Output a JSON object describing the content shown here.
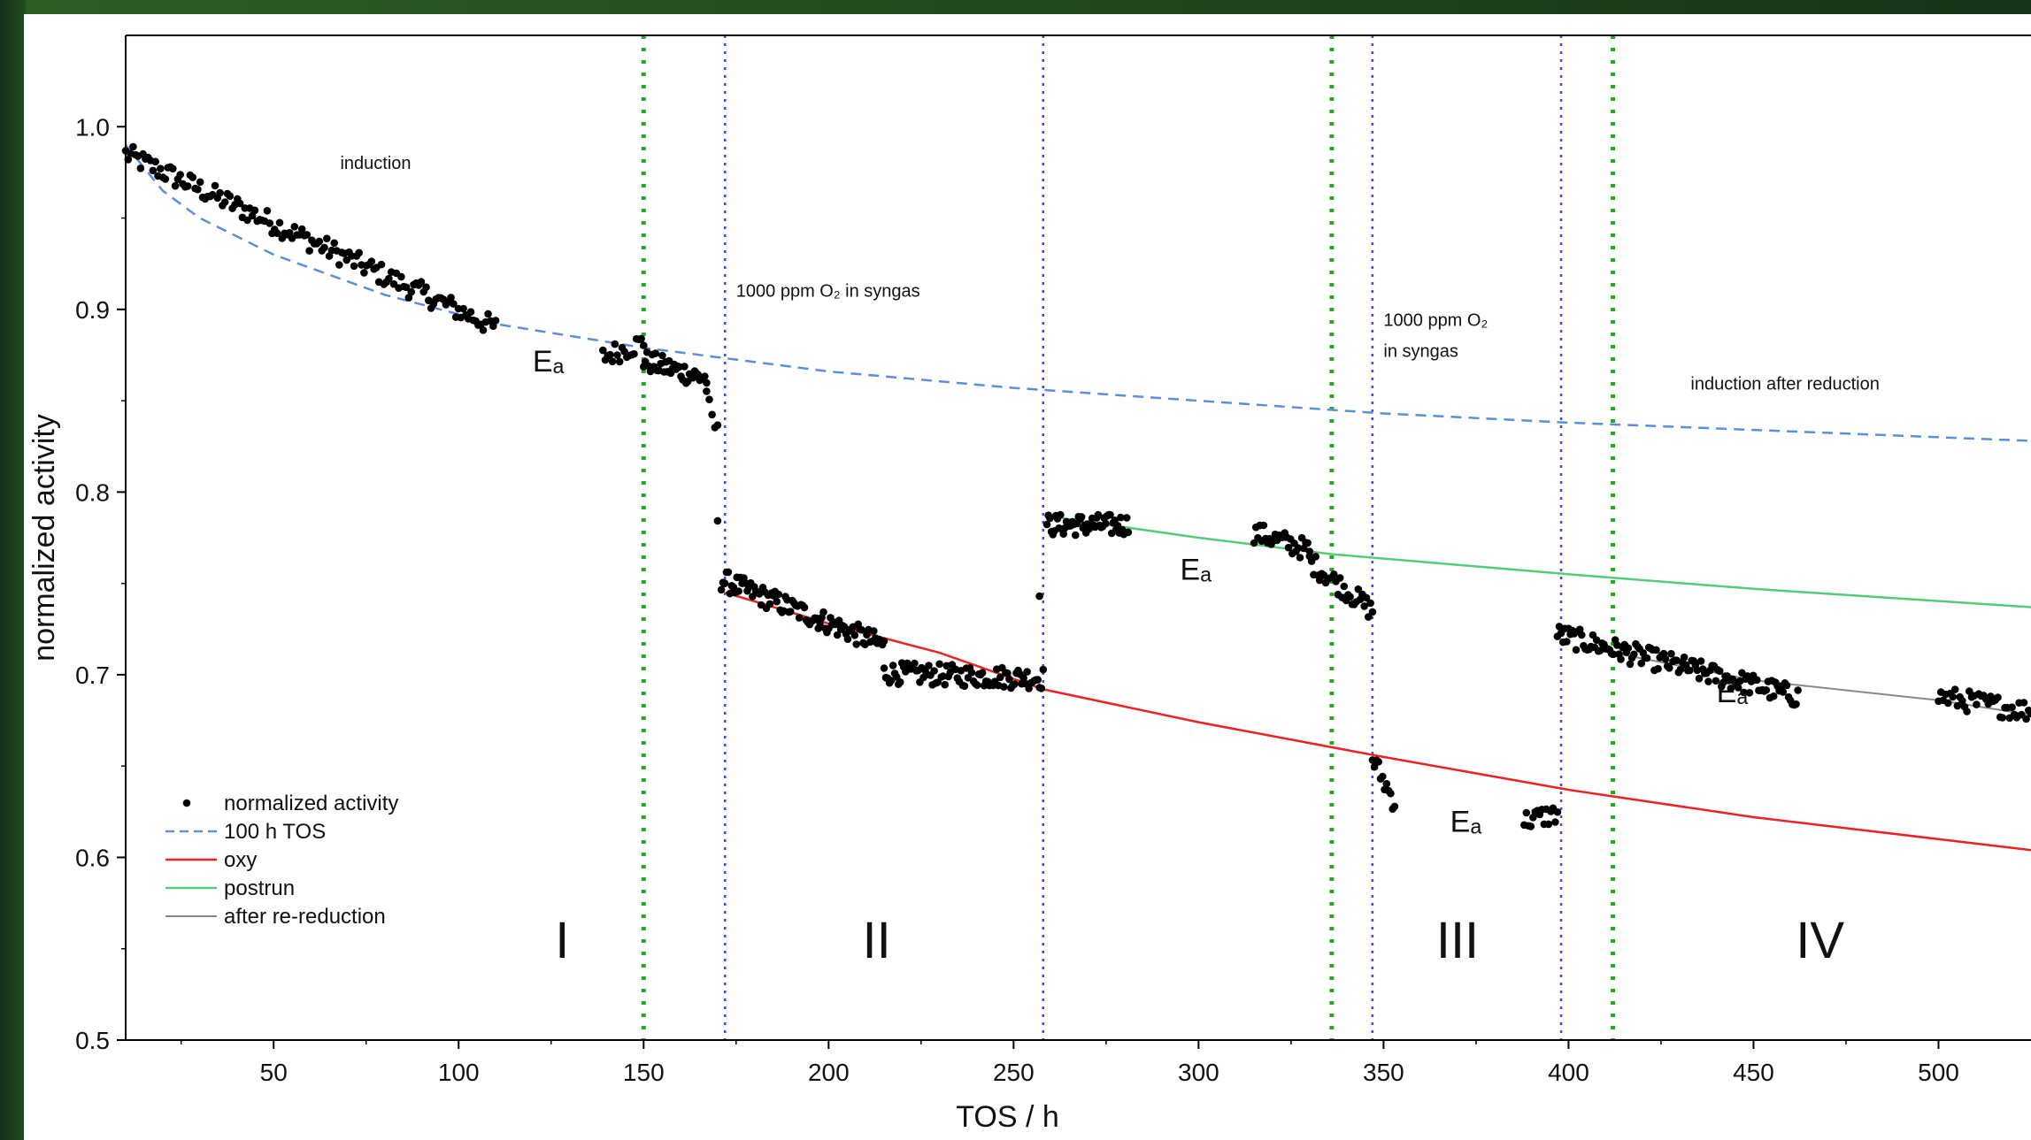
{
  "chart_data": {
    "type": "scatter",
    "xlabel": "TOS / h",
    "ylabel": "normalized activity",
    "xlim": [
      10,
      525
    ],
    "ylim": [
      0.5,
      1.05
    ],
    "xticks": [
      50,
      100,
      150,
      200,
      250,
      300,
      350,
      400,
      450,
      500
    ],
    "yticks": [
      0.5,
      0.6,
      0.7,
      0.8,
      0.9,
      1.0
    ],
    "xtick_labels": [
      "50",
      "100",
      "150",
      "200",
      "250",
      "300",
      "350",
      "400",
      "450",
      "500"
    ],
    "ytick_labels": [
      "0.5",
      "0.6",
      "0.7",
      "0.8",
      "0.9",
      "1.0"
    ],
    "grid": false,
    "legend_position": "bottom-left",
    "legend": [
      {
        "label": "normalized activity",
        "style": "dot",
        "color": "#000000"
      },
      {
        "label": "100 h TOS",
        "style": "dashed",
        "color": "#5b8fd6"
      },
      {
        "label": "oxy",
        "style": "solid",
        "color": "#ee2222"
      },
      {
        "label": "postrun",
        "style": "solid",
        "color": "#55cc77"
      },
      {
        "label": "after re-reduction",
        "style": "solid",
        "color": "#888888"
      }
    ],
    "vlines": [
      {
        "x": 150,
        "color": "#22aa22",
        "style": "dotted"
      },
      {
        "x": 172,
        "color": "#4444ff",
        "style": "dotted"
      },
      {
        "x": 258,
        "color": "#4444ff",
        "style": "dotted"
      },
      {
        "x": 336,
        "color": "#22aa22",
        "style": "dotted"
      },
      {
        "x": 347,
        "color": "#4444ff",
        "style": "dotted"
      },
      {
        "x": 398,
        "color": "#4444ff",
        "style": "dotted"
      },
      {
        "x": 412,
        "color": "#22aa22",
        "style": "dotted"
      }
    ],
    "fits": [
      {
        "name": "100 h TOS",
        "color": "#5b8fd6",
        "dashed": true,
        "points": [
          [
            10,
            0.99
          ],
          [
            20,
            0.965
          ],
          [
            30,
            0.95
          ],
          [
            50,
            0.93
          ],
          [
            80,
            0.908
          ],
          [
            110,
            0.892
          ],
          [
            150,
            0.879
          ],
          [
            200,
            0.866
          ],
          [
            250,
            0.857
          ],
          [
            300,
            0.85
          ],
          [
            350,
            0.843
          ],
          [
            400,
            0.838
          ],
          [
            450,
            0.834
          ],
          [
            525,
            0.828
          ]
        ]
      },
      {
        "name": "oxy",
        "color": "#ee2222",
        "dashed": false,
        "points": [
          [
            172,
            0.745
          ],
          [
            200,
            0.728
          ],
          [
            230,
            0.712
          ],
          [
            258,
            0.692
          ],
          [
            300,
            0.674
          ],
          [
            350,
            0.655
          ],
          [
            400,
            0.637
          ],
          [
            450,
            0.622
          ],
          [
            525,
            0.604
          ]
        ]
      },
      {
        "name": "postrun",
        "color": "#55cc77",
        "dashed": false,
        "points": [
          [
            262,
            0.786
          ],
          [
            300,
            0.775
          ],
          [
            336,
            0.766
          ],
          [
            400,
            0.755
          ],
          [
            450,
            0.747
          ],
          [
            525,
            0.737
          ]
        ]
      },
      {
        "name": "after re-reduction",
        "color": "#888888",
        "dashed": false,
        "points": [
          [
            412,
            0.712
          ],
          [
            450,
            0.697
          ],
          [
            500,
            0.686
          ],
          [
            525,
            0.678
          ]
        ]
      }
    ],
    "scatter_segments": [
      {
        "x0": 10,
        "x1": 110,
        "y0": 0.985,
        "y1": 0.89,
        "n": 150
      },
      {
        "x0": 139,
        "x1": 150,
        "y0": 0.874,
        "y1": 0.882,
        "n": 18
      },
      {
        "x0": 150,
        "x1": 167,
        "y0": 0.872,
        "y1": 0.862,
        "n": 38
      },
      {
        "x0": 167,
        "x1": 170,
        "y0": 0.85,
        "y1": 0.832,
        "n": 5
      },
      {
        "x0": 170,
        "x1": 172,
        "y0": 0.787,
        "y1": 0.787,
        "n": 1
      },
      {
        "x0": 171,
        "x1": 215,
        "y0": 0.752,
        "y1": 0.716,
        "n": 95
      },
      {
        "x0": 215,
        "x1": 258,
        "y0": 0.701,
        "y1": 0.698,
        "n": 90
      },
      {
        "x0": 257,
        "x1": 258,
        "y0": 0.748,
        "y1": 0.748,
        "n": 1
      },
      {
        "x0": 259,
        "x1": 281,
        "y0": 0.782,
        "y1": 0.782,
        "n": 55
      },
      {
        "x0": 315,
        "x1": 330,
        "y0": 0.778,
        "y1": 0.768,
        "n": 30
      },
      {
        "x0": 330,
        "x1": 347,
        "y0": 0.762,
        "y1": 0.735,
        "n": 32
      },
      {
        "x0": 347,
        "x1": 353,
        "y0": 0.654,
        "y1": 0.63,
        "n": 12
      },
      {
        "x0": 388,
        "x1": 397,
        "y0": 0.62,
        "y1": 0.624,
        "n": 16
      },
      {
        "x0": 397,
        "x1": 462,
        "y0": 0.722,
        "y1": 0.688,
        "n": 130
      },
      {
        "x0": 500,
        "x1": 525,
        "y0": 0.688,
        "y1": 0.68,
        "n": 40
      }
    ],
    "annotations": [
      {
        "text": "induction",
        "x": 68,
        "y": 0.977,
        "kind": "small"
      },
      {
        "text": "1000 ppm O₂ in syngas",
        "x": 175,
        "y": 0.907,
        "kind": "small"
      },
      {
        "text": "1000 ppm O₂",
        "x": 350,
        "y": 0.891,
        "kind": "small"
      },
      {
        "text": "in syngas",
        "x": 350,
        "y": 0.874,
        "kind": "small"
      },
      {
        "text": "induction after reduction",
        "x": 433,
        "y": 0.856,
        "kind": "small"
      },
      {
        "text": "Eₐ",
        "x": 120,
        "y": 0.866,
        "kind": "ea"
      },
      {
        "text": "Eₐ",
        "x": 295,
        "y": 0.752,
        "kind": "ea"
      },
      {
        "text": "Eₐ",
        "x": 368,
        "y": 0.614,
        "kind": "ea"
      },
      {
        "text": "Eₐ",
        "x": 440,
        "y": 0.685,
        "kind": "ea"
      },
      {
        "text": "I",
        "x": 128,
        "y": 0.545,
        "kind": "roman"
      },
      {
        "text": "II",
        "x": 213,
        "y": 0.545,
        "kind": "roman"
      },
      {
        "text": "III",
        "x": 370,
        "y": 0.545,
        "kind": "roman"
      },
      {
        "text": "IV",
        "x": 468,
        "y": 0.545,
        "kind": "roman"
      }
    ]
  }
}
